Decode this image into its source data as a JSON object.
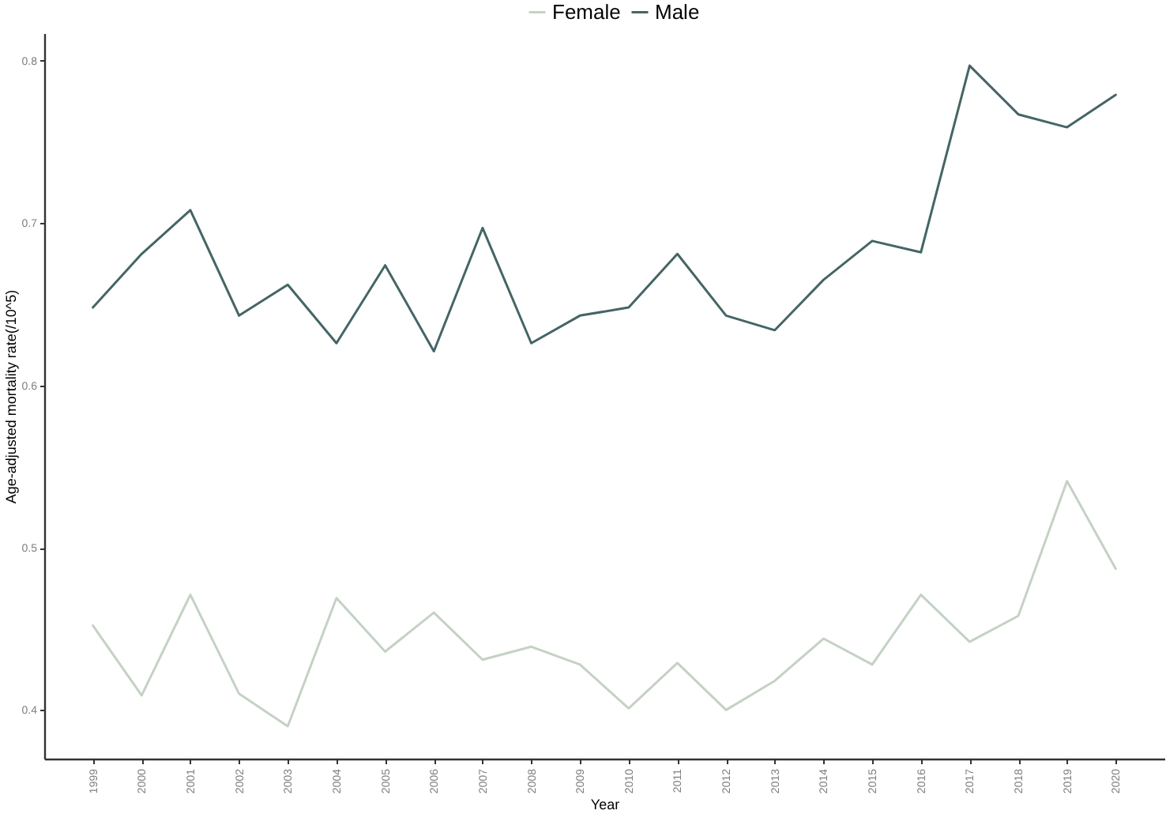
{
  "chart_data": {
    "type": "line",
    "xlabel": "Year",
    "ylabel": "Age-adjusted mortality rate(/10^5)",
    "categories": [
      "1999",
      "2000",
      "2001",
      "2002",
      "2003",
      "2004",
      "2005",
      "2006",
      "2007",
      "2008",
      "2009",
      "2010",
      "2011",
      "2012",
      "2013",
      "2014",
      "2015",
      "2016",
      "2017",
      "2018",
      "2019",
      "2020"
    ],
    "series": [
      {
        "name": "Female",
        "color": "#c4d2c4",
        "values": [
          0.452,
          0.409,
          0.471,
          0.41,
          0.39,
          0.469,
          0.436,
          0.46,
          0.431,
          0.439,
          0.428,
          0.401,
          0.429,
          0.4,
          0.418,
          0.444,
          0.428,
          0.471,
          0.442,
          0.458,
          0.541,
          0.487
        ]
      },
      {
        "name": "Male",
        "color": "#456565",
        "values": [
          0.648,
          0.681,
          0.708,
          0.643,
          0.662,
          0.626,
          0.674,
          0.621,
          0.697,
          0.626,
          0.643,
          0.648,
          0.681,
          0.643,
          0.634,
          0.665,
          0.689,
          0.682,
          0.797,
          0.767,
          0.759,
          0.779
        ]
      }
    ],
    "ylim": [
      0.37,
      0.817
    ],
    "yticks": [
      0.4,
      0.5,
      0.6,
      0.7,
      0.8
    ],
    "legend": "top",
    "marker": "none",
    "line_style": "solid"
  }
}
